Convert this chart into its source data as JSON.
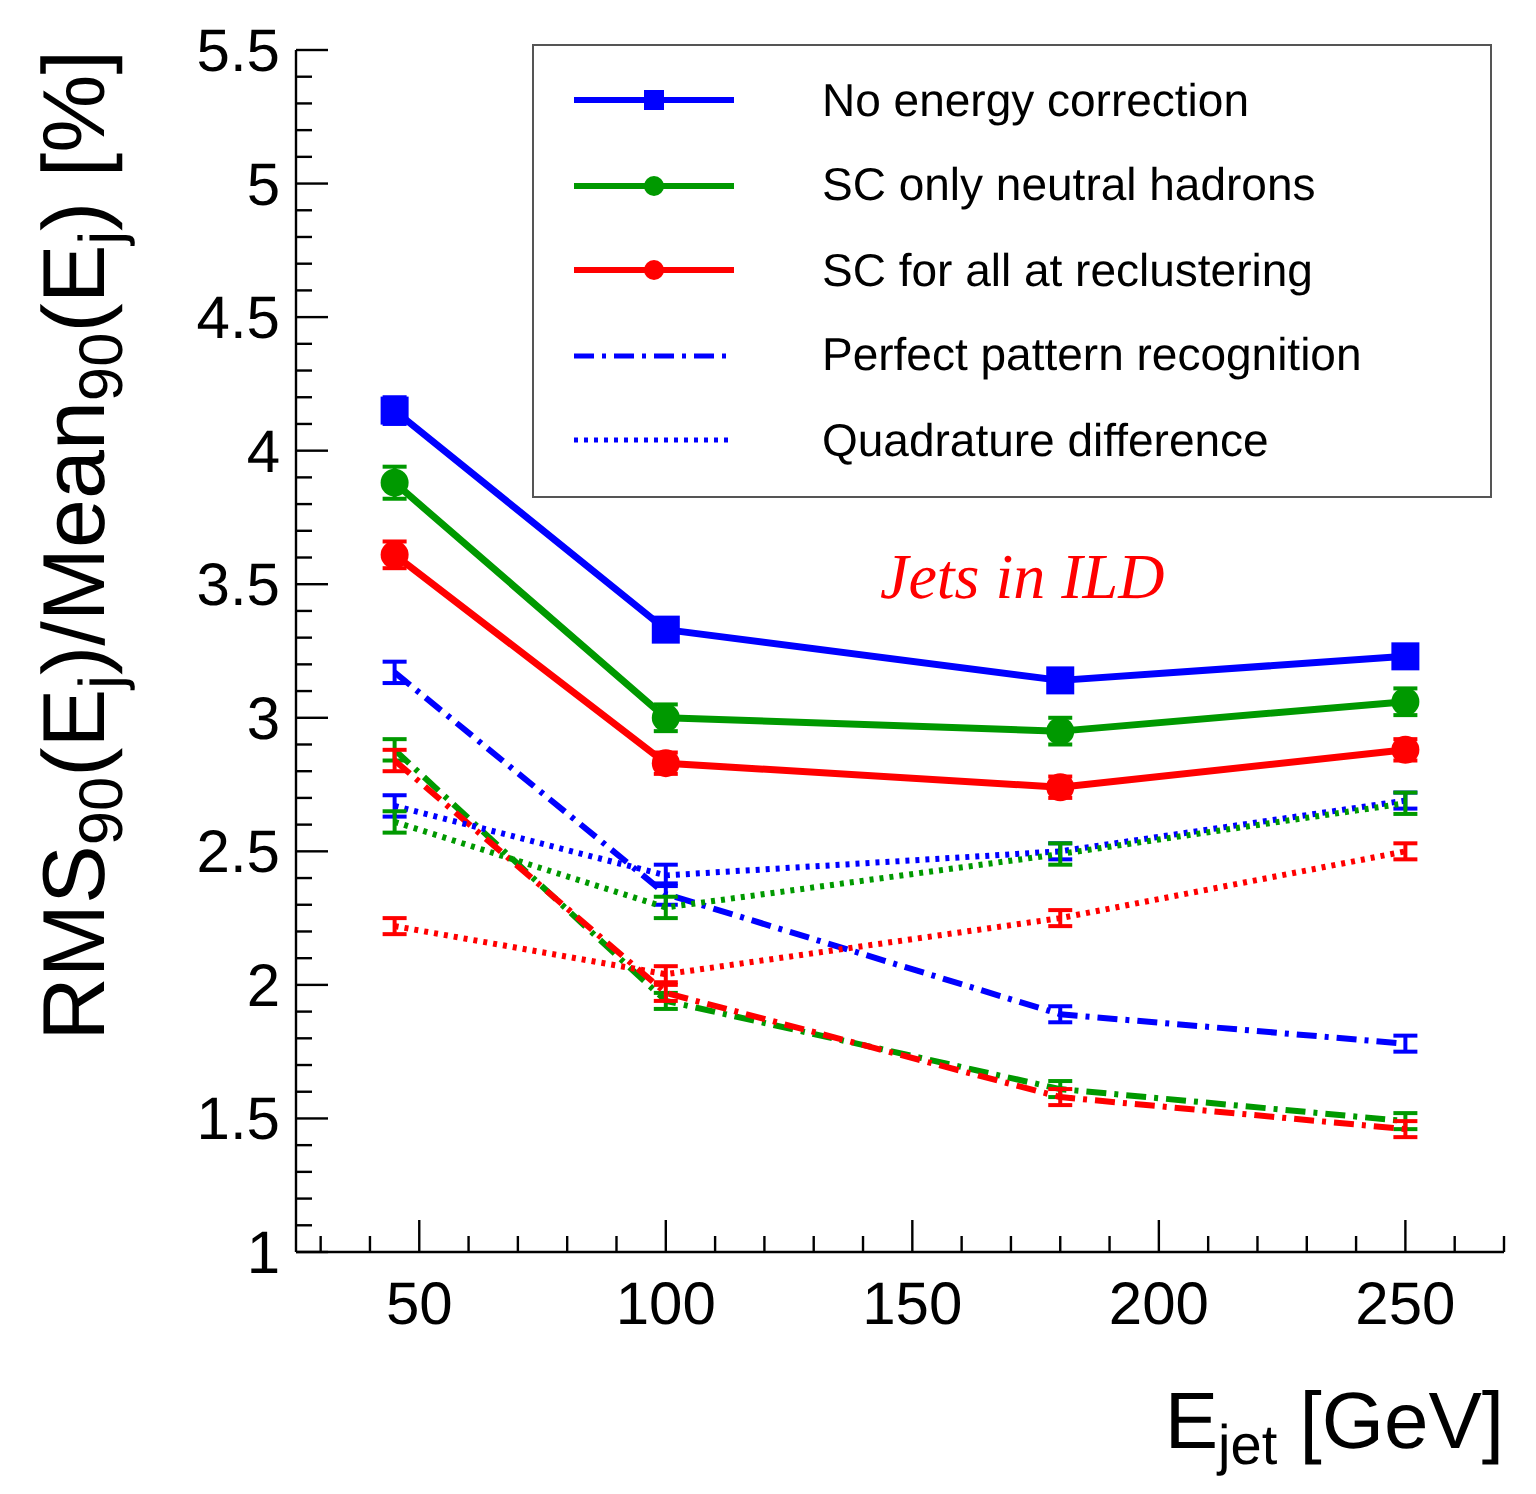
{
  "chart_data": {
    "type": "line",
    "xlabel": "E$_{jet}$ [GeV]",
    "ylabel": "RMS$_{90}$(E$_{j}$)/Mean$_{90}$(E$_{j}$) [%]",
    "annotations": [
      "Jets in ILD"
    ],
    "x": [
      45,
      100,
      180,
      250
    ],
    "xlim": [
      25,
      270
    ],
    "ylim": [
      1,
      5.5
    ],
    "xticks": [
      {
        "value": 30,
        "label": null
      },
      {
        "value": 40,
        "label": null
      },
      50,
      {
        "value": 60,
        "label": null
      },
      {
        "value": 70,
        "label": null
      },
      {
        "value": 80,
        "label": null
      },
      {
        "value": 90,
        "label": null
      },
      100,
      {
        "value": 110,
        "label": null
      },
      {
        "value": 120,
        "label": null
      },
      {
        "value": 130,
        "label": null
      },
      {
        "value": 140,
        "label": null
      },
      150,
      {
        "value": 160,
        "label": null
      },
      {
        "value": 170,
        "label": null
      },
      {
        "value": 180,
        "label": null
      },
      {
        "value": 190,
        "label": null
      },
      200,
      {
        "value": 210,
        "label": null
      },
      {
        "value": 220,
        "label": null
      },
      {
        "value": 230,
        "label": null
      },
      {
        "value": 240,
        "label": null
      },
      250,
      {
        "value": 260,
        "label": null
      },
      {
        "value": 270,
        "label": null
      }
    ],
    "yticks": [
      1,
      {
        "value": 1.1,
        "label": null
      },
      {
        "value": 1.2,
        "label": null
      },
      {
        "value": 1.3,
        "label": null
      },
      {
        "value": 1.4,
        "label": null
      },
      1.5,
      {
        "value": 1.6,
        "label": null
      },
      {
        "value": 1.7,
        "label": null
      },
      {
        "value": 1.8,
        "label": null
      },
      {
        "value": 1.9,
        "label": null
      },
      2,
      {
        "value": 2.1,
        "label": null
      },
      {
        "value": 2.2,
        "label": null
      },
      {
        "value": 2.3,
        "label": null
      },
      {
        "value": 2.4,
        "label": null
      },
      2.5,
      {
        "value": 2.6,
        "label": null
      },
      {
        "value": 2.7,
        "label": null
      },
      {
        "value": 2.8,
        "label": null
      },
      {
        "value": 2.9,
        "label": null
      },
      3,
      {
        "value": 3.1,
        "label": null
      },
      {
        "value": 3.2,
        "label": null
      },
      {
        "value": 3.3,
        "label": null
      },
      {
        "value": 3.4,
        "label": null
      },
      3.5,
      {
        "value": 3.6,
        "label": null
      },
      {
        "value": 3.7,
        "label": null
      },
      {
        "value": 3.8,
        "label": null
      },
      {
        "value": 3.9,
        "label": null
      },
      4,
      {
        "value": 4.1,
        "label": null
      },
      {
        "value": 4.2,
        "label": null
      },
      {
        "value": 4.3,
        "label": null
      },
      {
        "value": 4.4,
        "label": null
      },
      4.5,
      {
        "value": 4.6,
        "label": null
      },
      {
        "value": 4.7,
        "label": null
      },
      {
        "value": 4.8,
        "label": null
      },
      {
        "value": 4.9,
        "label": null
      },
      5,
      {
        "value": 5.1,
        "label": null
      },
      {
        "value": 5.2,
        "label": null
      },
      {
        "value": 5.3,
        "label": null
      },
      {
        "value": 5.4,
        "label": null
      },
      5.5
    ],
    "legend": "top right",
    "series": [
      {
        "name": "No energy correction",
        "color": "#0000ff",
        "values": [
          4.15,
          3.33,
          3.14,
          3.23
        ],
        "errors": [
          0.05,
          0.04,
          0.04,
          0.04
        ],
        "marker": "square",
        "line_style": "solid"
      },
      {
        "name": "SC only neutral hadrons",
        "color": "#009900",
        "values": [
          3.88,
          3.0,
          2.95,
          3.06
        ],
        "errors": [
          0.06,
          0.05,
          0.05,
          0.05
        ],
        "marker": "circle",
        "line_style": "solid"
      },
      {
        "name": "SC for all at reclustering",
        "color": "#ff0000",
        "values": [
          3.61,
          2.83,
          2.74,
          2.88
        ],
        "errors": [
          0.05,
          0.04,
          0.04,
          0.04
        ],
        "marker": "circle",
        "line_style": "solid"
      },
      {
        "name": "Perfect pattern recognition",
        "color": "#0000ff",
        "values": [
          3.17,
          2.34,
          1.89,
          1.78
        ],
        "errors": [
          0.04,
          0.04,
          0.03,
          0.03
        ],
        "marker": "none",
        "line_style": "dashdot"
      },
      {
        "color": "#009900",
        "values": [
          2.88,
          1.94,
          1.61,
          1.49
        ],
        "errors": [
          0.04,
          0.03,
          0.03,
          0.03
        ],
        "marker": "none",
        "line_style": "dashdot"
      },
      {
        "color": "#ff0000",
        "values": [
          2.84,
          1.97,
          1.58,
          1.46
        ],
        "errors": [
          0.04,
          0.03,
          0.03,
          0.03
        ],
        "marker": "none",
        "line_style": "dashdot"
      },
      {
        "name": "Quadrature difference",
        "color": "#0000ff",
        "values": [
          2.67,
          2.41,
          2.5,
          2.69
        ],
        "errors": [
          0.04,
          0.04,
          0.03,
          0.03
        ],
        "marker": "none",
        "line_style": "dotted"
      },
      {
        "color": "#009900",
        "values": [
          2.61,
          2.29,
          2.49,
          2.68
        ],
        "errors": [
          0.04,
          0.04,
          0.04,
          0.04
        ],
        "marker": "none",
        "line_style": "dotted"
      },
      {
        "color": "#ff0000",
        "values": [
          2.22,
          2.04,
          2.25,
          2.5
        ],
        "errors": [
          0.03,
          0.03,
          0.03,
          0.03
        ],
        "marker": "none",
        "line_style": "dotted"
      }
    ]
  }
}
